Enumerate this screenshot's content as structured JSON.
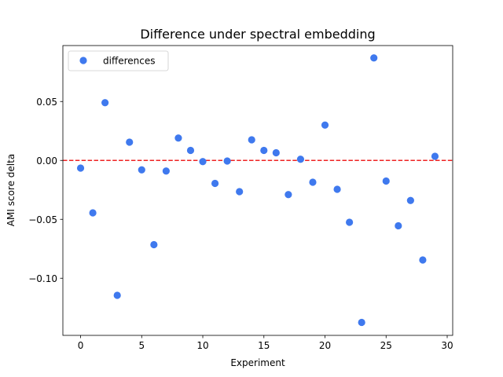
{
  "chart_data": {
    "type": "scatter",
    "title": "Difference under spectral embedding",
    "xlabel": "Experiment",
    "ylabel": "AMI score delta",
    "xlim": [
      -1.45,
      30.45
    ],
    "ylim": [
      -0.1485,
      0.0975
    ],
    "xticks": [
      0,
      5,
      10,
      15,
      20,
      25,
      30
    ],
    "xtick_labels": [
      "0",
      "5",
      "10",
      "15",
      "20",
      "25",
      "30"
    ],
    "yticks": [
      -0.1,
      -0.05,
      0.0,
      0.05
    ],
    "ytick_labels": [
      "−0.10",
      "−0.05",
      "0.00",
      "0.05"
    ],
    "grid": false,
    "legend": {
      "position": "upper-left",
      "entries": [
        "differences"
      ]
    },
    "reference_line": {
      "y": 0,
      "style": "dashed",
      "color": "#ee2222"
    },
    "series": [
      {
        "name": "differences",
        "color": "#3f79ee",
        "x": [
          0,
          1,
          2,
          3,
          4,
          5,
          6,
          7,
          8,
          9,
          10,
          11,
          12,
          13,
          14,
          15,
          16,
          17,
          18,
          19,
          20,
          21,
          22,
          23,
          24,
          25,
          26,
          27,
          28,
          29
        ],
        "y": [
          -0.0065,
          -0.0445,
          0.049,
          -0.1145,
          0.0155,
          -0.008,
          -0.0715,
          -0.009,
          0.019,
          0.0085,
          -0.001,
          -0.0195,
          -0.0005,
          -0.0265,
          0.0175,
          0.0085,
          0.0065,
          -0.029,
          0.001,
          -0.0185,
          0.03,
          -0.0245,
          -0.0525,
          -0.1375,
          0.087,
          -0.0175,
          -0.0555,
          -0.034,
          -0.0845,
          0.0035
        ]
      }
    ]
  }
}
